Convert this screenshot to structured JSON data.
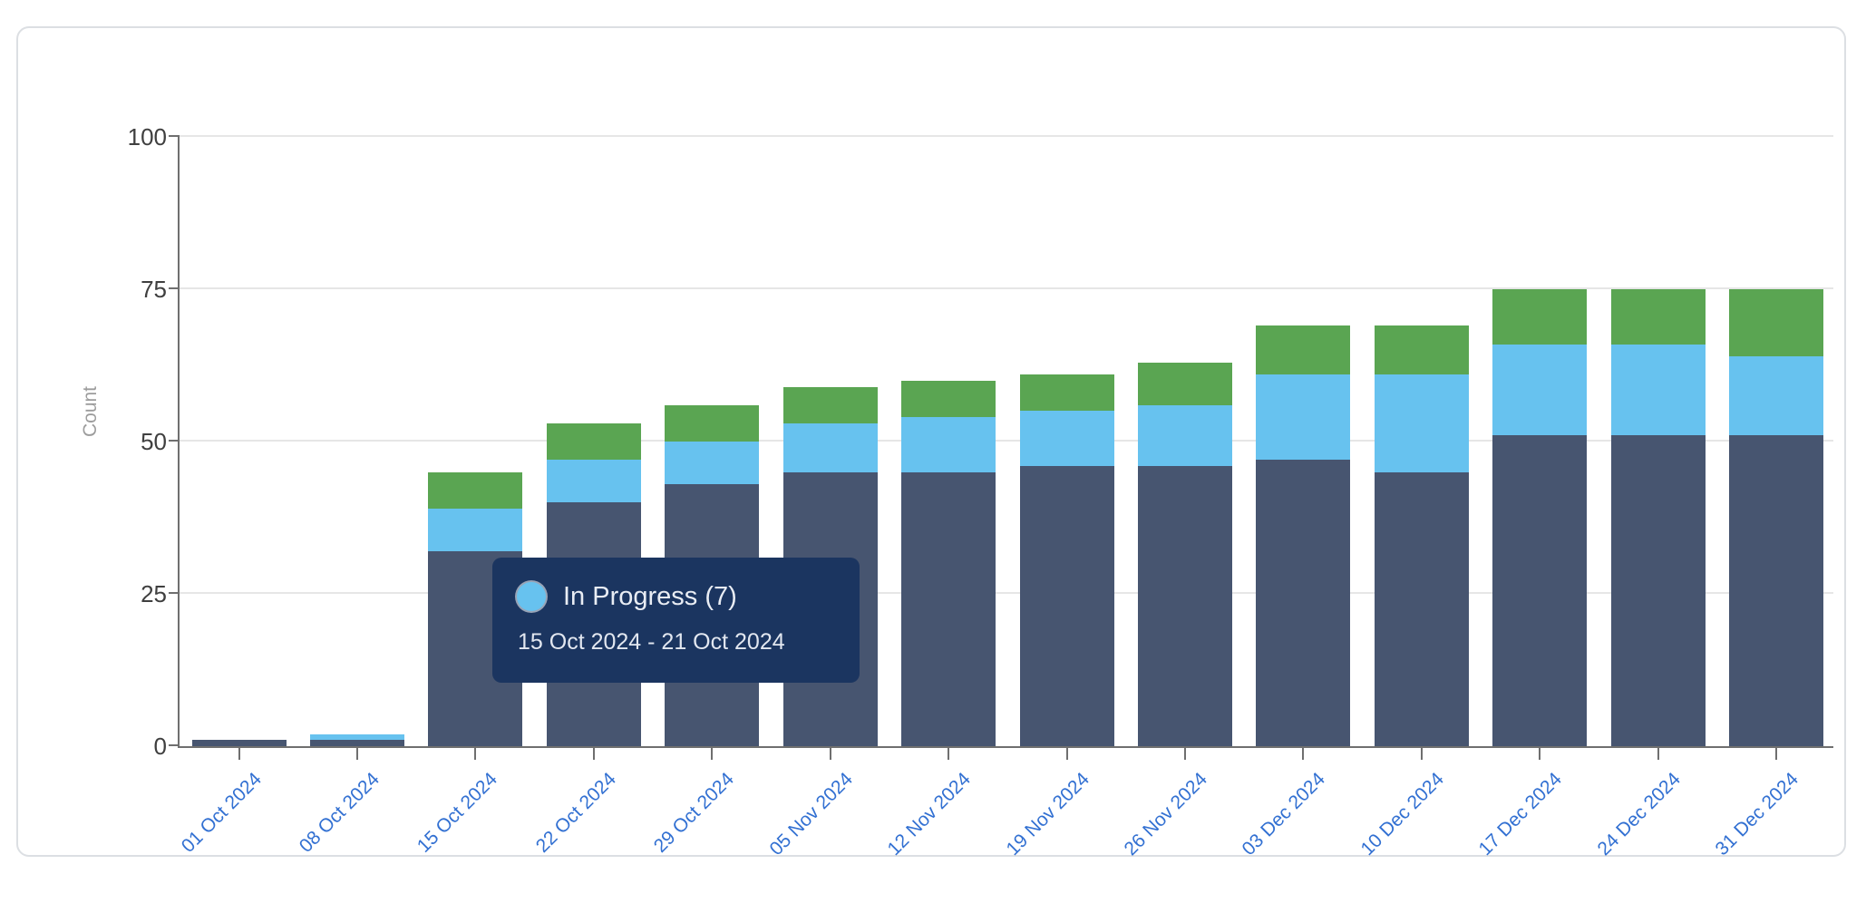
{
  "chart_data": {
    "type": "bar",
    "stacked": true,
    "title": "",
    "xlabel": "",
    "ylabel": "Count",
    "ylim": [
      0,
      100
    ],
    "yticks": [
      0,
      25,
      50,
      75,
      100
    ],
    "grid": true,
    "legend": "none",
    "categories": [
      "01 Oct 2024",
      "08 Oct 2024",
      "15 Oct 2024",
      "22 Oct 2024",
      "29 Oct 2024",
      "05 Nov 2024",
      "12 Nov 2024",
      "19 Nov 2024",
      "26 Nov 2024",
      "03 Dec 2024",
      "10 Dec 2024",
      "17 Dec 2024",
      "24 Dec 2024",
      "31 Dec 2024"
    ],
    "series": [
      {
        "id": "bottom-navy",
        "color": "#475570",
        "values": [
          1,
          1,
          32,
          40,
          43,
          45,
          45,
          46,
          46,
          47,
          45,
          51,
          51,
          51
        ]
      },
      {
        "id": "middle-blue",
        "label": "In Progress",
        "color": "#67c2ef",
        "values": [
          0,
          1,
          7,
          7,
          7,
          8,
          9,
          9,
          10,
          14,
          16,
          15,
          15,
          13
        ]
      },
      {
        "id": "top-green",
        "color": "#5aa552",
        "values": [
          0,
          0,
          6,
          6,
          6,
          6,
          6,
          6,
          7,
          8,
          8,
          9,
          9,
          11
        ]
      }
    ]
  },
  "tooltip": {
    "title": "In Progress (7)",
    "date_range": "15 Oct 2024 - 21 Oct 2024",
    "marker_color": "#67c2ef",
    "background": "#1b3560"
  },
  "colors": {
    "x_label": "#3270d2",
    "y_label": "#3f3f3f",
    "axis_line": "#6f6f6f",
    "gridline": "#e6e6e6",
    "card_border": "#dcdfe3"
  }
}
